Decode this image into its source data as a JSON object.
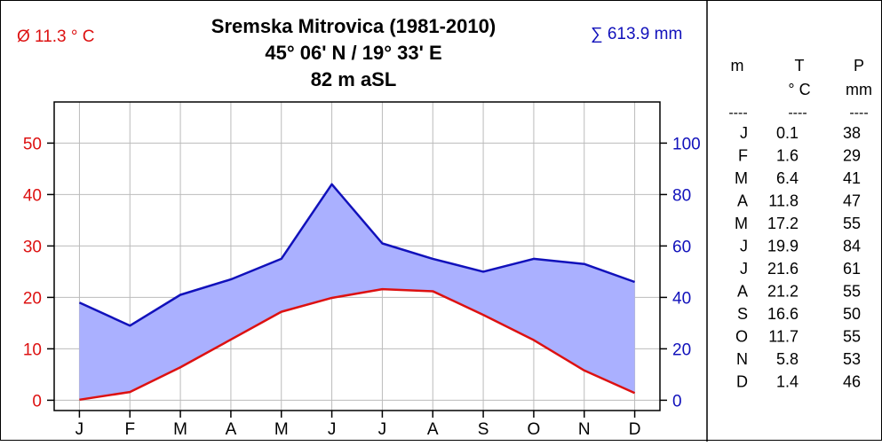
{
  "chart_data": {
    "type": "line",
    "title": "Sremska Mitrovica (1981-2010)",
    "subtitle_coords": "45° 06' N / 19° 33' E",
    "subtitle_elevation": "82 m aSL",
    "annual_mean_temp_label": "Ø 11.3 ° C",
    "annual_precip_label": "∑ 613.9 mm",
    "categories": [
      "J",
      "F",
      "M",
      "A",
      "M",
      "J",
      "J",
      "A",
      "S",
      "O",
      "N",
      "D"
    ],
    "series": [
      {
        "key": "temperature",
        "values": [
          0.1,
          1.6,
          6.4,
          11.8,
          17.2,
          19.9,
          21.6,
          21.2,
          16.6,
          11.7,
          5.8,
          1.4
        ],
        "color": "#dd1111",
        "axis": "left"
      },
      {
        "key": "precipitation",
        "values": [
          38,
          29,
          41,
          47,
          55,
          84,
          61,
          55,
          50,
          55,
          53,
          46
        ],
        "color": "#1111bb",
        "axis": "right"
      }
    ],
    "fill_color": "#aab0ff",
    "left_axis": {
      "ylim": [
        -2,
        58
      ],
      "ticks": [
        0,
        10,
        20,
        30,
        40,
        50
      ],
      "color": "#dd1111"
    },
    "right_axis": {
      "ylim": [
        -4,
        116
      ],
      "ticks": [
        0,
        20,
        40,
        60,
        80,
        100
      ],
      "color": "#1111bb"
    },
    "grid": true
  },
  "table": {
    "headers": [
      {
        "line1": "m",
        "line2": ""
      },
      {
        "line1": "T",
        "line2": "° C"
      },
      {
        "line1": "P",
        "line2": "mm"
      }
    ],
    "separator": "----",
    "rows": [
      [
        "J",
        "0.1",
        "38"
      ],
      [
        "F",
        "1.6",
        "29"
      ],
      [
        "M",
        "6.4",
        "41"
      ],
      [
        "A",
        "11.8",
        "47"
      ],
      [
        "M",
        "17.2",
        "55"
      ],
      [
        "J",
        "19.9",
        "84"
      ],
      [
        "J",
        "21.6",
        "61"
      ],
      [
        "A",
        "21.2",
        "55"
      ],
      [
        "S",
        "16.6",
        "50"
      ],
      [
        "O",
        "11.7",
        "55"
      ],
      [
        "N",
        "5.8",
        "53"
      ],
      [
        "D",
        "1.4",
        "46"
      ]
    ]
  }
}
